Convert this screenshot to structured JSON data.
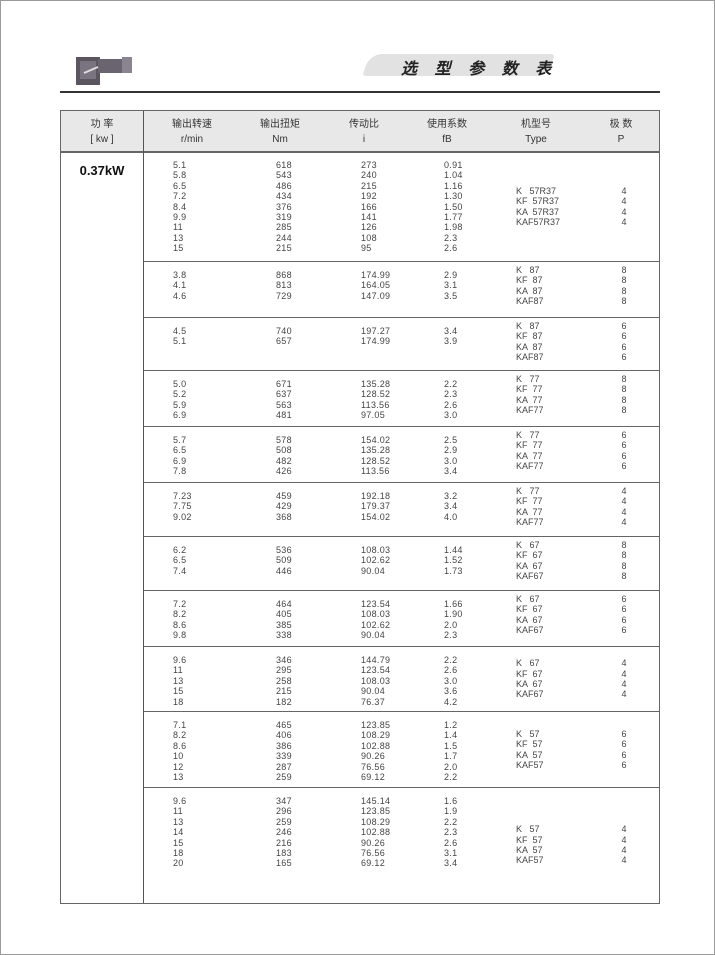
{
  "header": {
    "title": "选 型 参 数 表"
  },
  "columns": [
    {
      "cn": "功  率",
      "unit": "[ kw ]"
    },
    {
      "cn": "输出转速",
      "unit": "r/min"
    },
    {
      "cn": "输出扭矩",
      "unit": "Nm"
    },
    {
      "cn": "传动比",
      "unit": "i"
    },
    {
      "cn": "使用系数",
      "unit": "fB"
    },
    {
      "cn": "机型号",
      "unit": "Type"
    },
    {
      "cn": "极  数",
      "unit": "P"
    }
  ],
  "power": "0.37kW",
  "groups": [
    {
      "speed": [
        "5.1",
        "5.8",
        "6.5",
        "7.2",
        "8.4",
        "9.9",
        "11",
        "13",
        "15"
      ],
      "torque": [
        "618",
        "543",
        "486",
        "434",
        "376",
        "319",
        "285",
        "244",
        "215"
      ],
      "ratio": [
        "273",
        "240",
        "215",
        "192",
        "166",
        "141",
        "126",
        "108",
        "95"
      ],
      "fb": [
        "0.91",
        "1.04",
        "1.16",
        "1.30",
        "1.50",
        "1.77",
        "1.98",
        "2.3",
        "2.6"
      ],
      "types": [
        "K   57R37",
        "KF  57R37",
        "KA  57R37",
        "KAF57R37"
      ],
      "poles": [
        "4",
        "4",
        "4",
        "4"
      ]
    },
    {
      "speed": [
        "3.8",
        "4.1",
        "4.6"
      ],
      "torque": [
        "868",
        "813",
        "729"
      ],
      "ratio": [
        "174.99",
        "164.05",
        "147.09"
      ],
      "fb": [
        "2.9",
        "3.1",
        "3.5"
      ],
      "types": [
        "K   87",
        "KF  87",
        "KA  87",
        "KAF87"
      ],
      "poles": [
        "8",
        "8",
        "8",
        "8"
      ]
    },
    {
      "speed": [
        "4.5",
        "5.1"
      ],
      "torque": [
        "740",
        "657"
      ],
      "ratio": [
        "197.27",
        "174.99"
      ],
      "fb": [
        "3.4",
        "3.9"
      ],
      "types": [
        "K   87",
        "KF  87",
        "KA  87",
        "KAF87"
      ],
      "poles": [
        "6",
        "6",
        "6",
        "6"
      ]
    },
    {
      "speed": [
        "5.0",
        "5.2",
        "5.9",
        "6.9"
      ],
      "torque": [
        "671",
        "637",
        "563",
        "481"
      ],
      "ratio": [
        "135.28",
        "128.52",
        "113.56",
        "97.05"
      ],
      "fb": [
        "2.2",
        "2.3",
        "2.6",
        "3.0"
      ],
      "types": [
        "K   77",
        "KF  77",
        "KA  77",
        "KAF77"
      ],
      "poles": [
        "8",
        "8",
        "8",
        "8"
      ]
    },
    {
      "speed": [
        "5.7",
        "6.5",
        "6.9",
        "7.8"
      ],
      "torque": [
        "578",
        "508",
        "482",
        "426"
      ],
      "ratio": [
        "154.02",
        "135.28",
        "128.52",
        "113.56"
      ],
      "fb": [
        "2.5",
        "2.9",
        "3.0",
        "3.4"
      ],
      "types": [
        "K   77",
        "KF  77",
        "KA  77",
        "KAF77"
      ],
      "poles": [
        "6",
        "6",
        "6",
        "6"
      ]
    },
    {
      "speed": [
        "7.23",
        "7.75",
        "9.02"
      ],
      "torque": [
        "459",
        "429",
        "368"
      ],
      "ratio": [
        "192.18",
        "179.37",
        "154.02"
      ],
      "fb": [
        "3.2",
        "3.4",
        "4.0"
      ],
      "types": [
        "K   77",
        "KF  77",
        "KA  77",
        "KAF77"
      ],
      "poles": [
        "4",
        "4",
        "4",
        "4"
      ]
    },
    {
      "speed": [
        "6.2",
        "6.5",
        "7.4"
      ],
      "torque": [
        "536",
        "509",
        "446"
      ],
      "ratio": [
        "108.03",
        "102.62",
        "90.04"
      ],
      "fb": [
        "1.44",
        "1.52",
        "1.73"
      ],
      "types": [
        "K   67",
        "KF  67",
        "KA  67",
        "KAF67"
      ],
      "poles": [
        "8",
        "8",
        "8",
        "8"
      ]
    },
    {
      "speed": [
        "7.2",
        "8.2",
        "8.6",
        "9.8"
      ],
      "torque": [
        "464",
        "405",
        "385",
        "338"
      ],
      "ratio": [
        "123.54",
        "108.03",
        "102.62",
        "90.04"
      ],
      "fb": [
        "1.66",
        "1.90",
        "2.0",
        "2.3"
      ],
      "types": [
        "K   67",
        "KF  67",
        "KA  67",
        "KAF67"
      ],
      "poles": [
        "6",
        "6",
        "6",
        "6"
      ]
    },
    {
      "speed": [
        "9.6",
        "11",
        "13",
        "15",
        "18"
      ],
      "torque": [
        "346",
        "295",
        "258",
        "215",
        "182"
      ],
      "ratio": [
        "144.79",
        "123.54",
        "108.03",
        "90.04",
        "76.37"
      ],
      "fb": [
        "2.2",
        "2.6",
        "3.0",
        "3.6",
        "4.2"
      ],
      "types": [
        "K   67",
        "KF  67",
        "KA  67",
        "KAF67"
      ],
      "poles": [
        "4",
        "4",
        "4",
        "4"
      ]
    },
    {
      "speed": [
        "7.1",
        "8.2",
        "8.6",
        "10",
        "12",
        "13"
      ],
      "torque": [
        "465",
        "406",
        "386",
        "339",
        "287",
        "259"
      ],
      "ratio": [
        "123.85",
        "108.29",
        "102.88",
        "90.26",
        "76.56",
        "69.12"
      ],
      "fb": [
        "1.2",
        "1.4",
        "1.5",
        "1.7",
        "2.0",
        "2.2"
      ],
      "types": [
        "K   57",
        "KF  57",
        "KA  57",
        "KAF57"
      ],
      "poles": [
        "6",
        "6",
        "6",
        "6"
      ]
    },
    {
      "speed": [
        "9.6",
        "11",
        "13",
        "14",
        "15",
        "18",
        "20"
      ],
      "torque": [
        "347",
        "296",
        "259",
        "246",
        "216",
        "183",
        "165"
      ],
      "ratio": [
        "145.14",
        "123.85",
        "108.29",
        "102.88",
        "90.26",
        "76.56",
        "69.12"
      ],
      "fb": [
        "1.6",
        "1.9",
        "2.2",
        "2.3",
        "2.6",
        "3.1",
        "3.4"
      ],
      "types": [
        "K   57",
        "KF  57",
        "KA  57",
        "KAF57"
      ],
      "poles": [
        "4",
        "4",
        "4",
        "4"
      ]
    }
  ]
}
